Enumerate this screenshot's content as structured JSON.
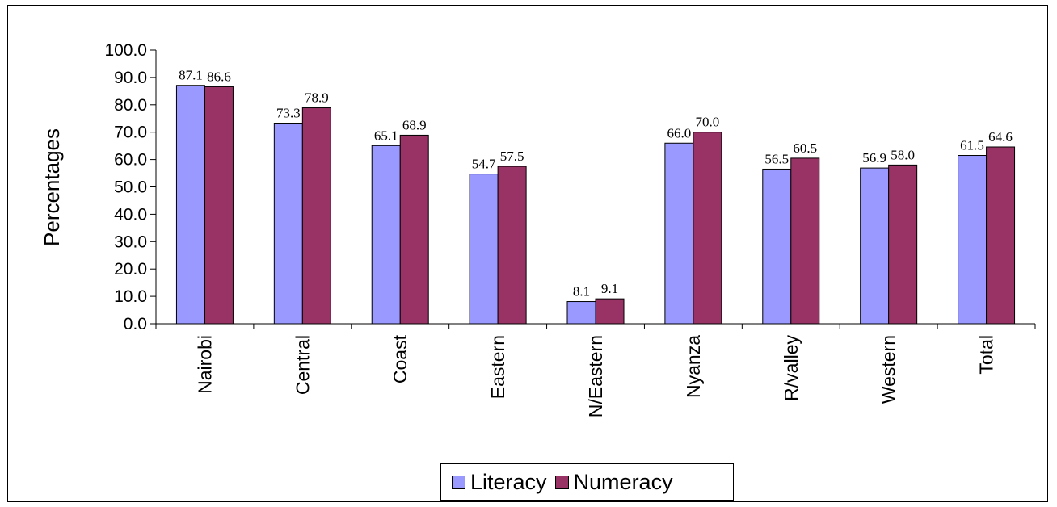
{
  "chart_data": {
    "type": "bar",
    "title": "",
    "xlabel": "",
    "ylabel": "Percentages",
    "ylim": [
      0,
      100
    ],
    "yticks": [
      "0.0",
      "10.0",
      "20.0",
      "30.0",
      "40.0",
      "50.0",
      "60.0",
      "70.0",
      "80.0",
      "90.0",
      "100.0"
    ],
    "categories": [
      "Nairobi",
      "Central",
      "Coast",
      "Eastern",
      "N/Eastern",
      "Nyanza",
      "R/valley",
      "Western",
      "Total"
    ],
    "series": [
      {
        "name": "Literacy",
        "color": "#9999ff",
        "values": [
          87.1,
          73.3,
          65.1,
          54.7,
          8.1,
          66.0,
          56.5,
          56.9,
          61.5
        ],
        "labels": [
          "87.1",
          "73.3",
          "65.1",
          "54.7",
          "8.1",
          "66.0",
          "56.5",
          "56.9",
          "61.5"
        ]
      },
      {
        "name": "Numeracy",
        "color": "#993366",
        "values": [
          86.6,
          78.9,
          68.9,
          57.5,
          9.1,
          70.0,
          60.5,
          58.0,
          64.6
        ],
        "labels": [
          "86.6",
          "78.9",
          "68.9",
          "57.5",
          "9.1",
          "70.0",
          "60.5",
          "58.0",
          "64.6"
        ]
      }
    ],
    "legend": "bottom",
    "grid": false
  }
}
